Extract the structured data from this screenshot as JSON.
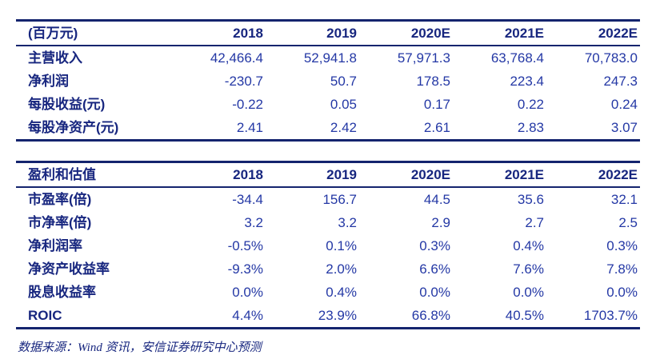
{
  "accent": {
    "line_color": "#14246e",
    "header_text_color": "#17267f",
    "data_text_color": "#2438a5"
  },
  "tables": [
    {
      "name": "financial-summary",
      "header": [
        "(百万元)",
        "2018",
        "2019",
        "2020E",
        "2021E",
        "2022E"
      ],
      "rows": [
        {
          "label": "主营收入",
          "values": [
            "42,466.4",
            "52,941.8",
            "57,971.3",
            "63,768.4",
            "70,783.0"
          ]
        },
        {
          "label": "净利润",
          "values": [
            "-230.7",
            "50.7",
            "178.5",
            "223.4",
            "247.3"
          ]
        },
        {
          "label": "每股收益(元)",
          "values": [
            "-0.22",
            "0.05",
            "0.17",
            "0.22",
            "0.24"
          ]
        },
        {
          "label": "每股净资产(元)",
          "values": [
            "2.41",
            "2.42",
            "2.61",
            "2.83",
            "3.07"
          ]
        }
      ]
    },
    {
      "name": "profit-and-valuation",
      "header": [
        "盈利和估值",
        "2018",
        "2019",
        "2020E",
        "2021E",
        "2022E"
      ],
      "rows": [
        {
          "label": "市盈率(倍)",
          "values": [
            "-34.4",
            "156.7",
            "44.5",
            "35.6",
            "32.1"
          ]
        },
        {
          "label": "市净率(倍)",
          "values": [
            "3.2",
            "3.2",
            "2.9",
            "2.7",
            "2.5"
          ]
        },
        {
          "label": "净利润率",
          "values": [
            "-0.5%",
            "0.1%",
            "0.3%",
            "0.4%",
            "0.3%"
          ]
        },
        {
          "label": "净资产收益率",
          "values": [
            "-9.3%",
            "2.0%",
            "6.6%",
            "7.6%",
            "7.8%"
          ]
        },
        {
          "label": "股息收益率",
          "values": [
            "0.0%",
            "0.4%",
            "0.0%",
            "0.0%",
            "0.0%"
          ]
        },
        {
          "label": "ROIC",
          "values": [
            "4.4%",
            "23.9%",
            "66.8%",
            "40.5%",
            "1703.7%"
          ]
        }
      ]
    }
  ],
  "footer": {
    "source_note": "数据来源：Wind 资讯，安信证券研究中心预测"
  }
}
